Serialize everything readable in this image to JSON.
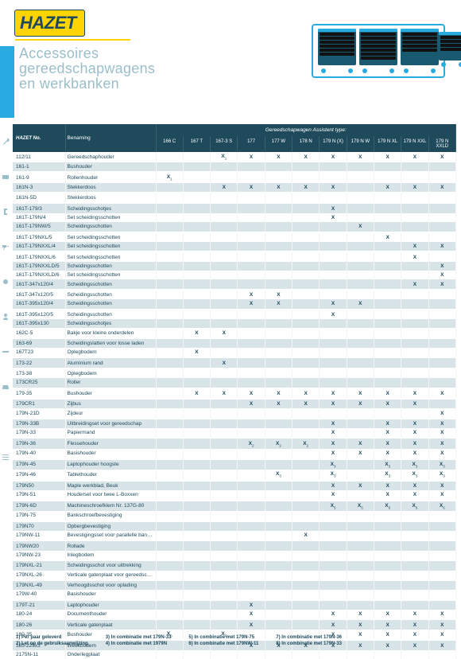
{
  "brand": "HAZET",
  "title_l1": "Accessoires",
  "title_l2": "gereedschapwagens",
  "title_l3": "en werkbanken",
  "header": {
    "group_label": "Gereedschapwagen Assistent type:",
    "code_label": "HAZET No.",
    "name_label": "Benaming",
    "cols": [
      "166 C",
      "167 T",
      "167-3 S",
      "177",
      "177 W",
      "178 N",
      "179 N (X)",
      "179 N W",
      "179 N XL",
      "179 N XXL",
      "179 N XXLD"
    ]
  },
  "rows": [
    {
      "code": "112/11",
      "name": "Gereedschaphouder",
      "v": [
        "",
        "",
        "X(1)",
        "X",
        "X",
        "X",
        "X",
        "X",
        "X",
        "X",
        "X"
      ]
    },
    {
      "code": "161-1",
      "name": "Bushouder",
      "v": [
        "",
        "",
        "",
        "",
        "",
        "",
        "",
        "",
        "",
        "",
        ""
      ]
    },
    {
      "code": "161-9",
      "name": "Rollenhouder",
      "v": [
        "X(1)",
        "",
        "",
        "",
        "",
        "",
        "",
        "",
        "",
        "",
        ""
      ]
    },
    {
      "code": "161N-3",
      "name": "Stekkerdoos",
      "v": [
        "",
        "",
        "X",
        "X",
        "X",
        "X",
        "X",
        "",
        "X",
        "X",
        "X"
      ]
    },
    {
      "code": "161N-5D",
      "name": "Stekkerdoos",
      "v": [
        "",
        "",
        "",
        "",
        "",
        "",
        "",
        "",
        "",
        "",
        ""
      ]
    },
    {
      "code": "161T-179/3",
      "name": "Scheidingsschotjes",
      "v": [
        "",
        "",
        "",
        "",
        "",
        "",
        "X",
        "",
        "",
        "",
        ""
      ]
    },
    {
      "code": "161T-179N/4",
      "name": "Set scheidingsschotten",
      "v": [
        "",
        "",
        "",
        "",
        "",
        "",
        "X",
        "",
        "",
        "",
        ""
      ]
    },
    {
      "code": "161T-179NW/5",
      "name": "Scheidingsschotten",
      "v": [
        "",
        "",
        "",
        "",
        "",
        "",
        "",
        "X",
        "",
        "",
        ""
      ]
    },
    {
      "code": "161T-179NXL/5",
      "name": "Set scheidingsschotten",
      "v": [
        "",
        "",
        "",
        "",
        "",
        "",
        "",
        "",
        "X",
        "",
        ""
      ]
    },
    {
      "code": "161T-179NXXL/4",
      "name": "Set scheidingsschotten",
      "v": [
        "",
        "",
        "",
        "",
        "",
        "",
        "",
        "",
        "",
        "X",
        "X"
      ]
    },
    {
      "code": "161T-179NXXL/6",
      "name": "Set scheidingsschotten",
      "v": [
        "",
        "",
        "",
        "",
        "",
        "",
        "",
        "",
        "",
        "X",
        ""
      ]
    },
    {
      "code": "161T-179NXXLD/5",
      "name": "Scheidingsschotten",
      "v": [
        "",
        "",
        "",
        "",
        "",
        "",
        "",
        "",
        "",
        "",
        "X"
      ]
    },
    {
      "code": "161T-179NXXLD/6",
      "name": "Set scheidingsschotten",
      "v": [
        "",
        "",
        "",
        "",
        "",
        "",
        "",
        "",
        "",
        "",
        "X"
      ]
    },
    {
      "code": "161T-347x120/4",
      "name": "Scheidingsschotten",
      "v": [
        "",
        "",
        "",
        "",
        "",
        "",
        "",
        "",
        "",
        "X",
        "X"
      ]
    },
    {
      "code": "161T-347x120/5",
      "name": "Scheidingsschotten",
      "v": [
        "",
        "",
        "",
        "X",
        "X",
        "",
        "",
        "",
        "",
        "",
        ""
      ]
    },
    {
      "code": "161T-395x120/4",
      "name": "Scheidingsschotten",
      "v": [
        "",
        "",
        "",
        "X",
        "X",
        "",
        "X",
        "X",
        "",
        "",
        ""
      ]
    },
    {
      "code": "161T-395x120/5",
      "name": "Scheidingsschotten",
      "v": [
        "",
        "",
        "",
        "",
        "",
        "",
        "X",
        "",
        "",
        "",
        ""
      ]
    },
    {
      "code": "161T-395x130",
      "name": "Scheidingsschotjes",
      "v": [
        "",
        "",
        "",
        "",
        "",
        "",
        "",
        "",
        "",
        "",
        ""
      ]
    },
    {
      "code": "162C-5",
      "name": "Bakje voor kleine onderdelen",
      "v": [
        "",
        "X",
        "X",
        "",
        "",
        "",
        "",
        "",
        "",
        "",
        ""
      ]
    },
    {
      "code": "163-69",
      "name": "Scheidingslatten voor losse laden",
      "v": [
        "",
        "",
        "",
        "",
        "",
        "",
        "",
        "",
        "",
        "",
        ""
      ]
    },
    {
      "code": "167T23",
      "name": "Oplegbodem",
      "v": [
        "",
        "X",
        "",
        "",
        "",
        "",
        "",
        "",
        "",
        "",
        ""
      ]
    },
    {
      "code": "173-22",
      "name": "Aluminium rand",
      "v": [
        "",
        "",
        "X",
        "",
        "",
        "",
        "",
        "",
        "",
        "",
        ""
      ]
    },
    {
      "code": "173-38",
      "name": "Oplegbodem",
      "v": [
        "",
        "",
        "",
        "",
        "",
        "",
        "",
        "",
        "",
        "",
        ""
      ]
    },
    {
      "code": "173CR25",
      "name": "Roller",
      "v": [
        "",
        "",
        "",
        "",
        "",
        "",
        "",
        "",
        "",
        "",
        ""
      ]
    },
    {
      "code": "179-35",
      "name": "Bushouder",
      "v": [
        "",
        "X",
        "X",
        "X",
        "X",
        "X",
        "X",
        "X",
        "X",
        "X",
        "X"
      ]
    },
    {
      "code": "179CR1",
      "name": "Zijbus",
      "v": [
        "",
        "",
        "",
        "X",
        "X",
        "X",
        "X",
        "X",
        "X",
        "X",
        ""
      ]
    },
    {
      "code": "179N-21D",
      "name": "Zijdeur",
      "v": [
        "",
        "",
        "",
        "",
        "",
        "",
        "",
        "",
        "",
        "",
        "X"
      ]
    },
    {
      "code": "179N-33B",
      "name": "Uitbreidingset voor gereedschap",
      "v": [
        "",
        "",
        "",
        "",
        "",
        "",
        "X",
        "",
        "X",
        "X",
        "X"
      ]
    },
    {
      "code": "179N-33",
      "name": "Papiermand",
      "v": [
        "",
        "",
        "",
        "",
        "",
        "",
        "X",
        "",
        "X",
        "X",
        "X"
      ]
    },
    {
      "code": "179N-36",
      "name": "Flessehouder",
      "v": [
        "",
        "",
        "",
        "X(2)",
        "X(2)",
        "X(2)",
        "X",
        "X",
        "X",
        "X",
        "X"
      ]
    },
    {
      "code": "179N-40",
      "name": "Basishouder",
      "v": [
        "",
        "",
        "",
        "",
        "",
        "",
        "X",
        "X",
        "X",
        "X",
        "X"
      ]
    },
    {
      "code": "179N-45",
      "name": "Laptophouder hoogste",
      "v": [
        "",
        "",
        "",
        "",
        "",
        "",
        "X(3)",
        "",
        "X(3)",
        "X(3)",
        "X(3)"
      ]
    },
    {
      "code": "179N-46",
      "name": "Tablethouder",
      "v": [
        "",
        "",
        "",
        "",
        "X(3)",
        "",
        "X(3)",
        "",
        "X(3)",
        "X(3)",
        "X(3)"
      ]
    },
    {
      "code": "179N50",
      "name": "Maple werkblad, Beuk",
      "v": [
        "",
        "",
        "",
        "",
        "",
        "",
        "X",
        "X",
        "X",
        "X",
        "X"
      ]
    },
    {
      "code": "179N-51",
      "name": "Houderset voor twee L-Boxxen",
      "v": [
        "",
        "",
        "",
        "",
        "",
        "",
        "X",
        "",
        "X",
        "X",
        "X"
      ]
    },
    {
      "code": "179N-6D",
      "name": "Machineschroefklem Nr. 137G-80",
      "v": [
        "",
        "",
        "",
        "",
        "",
        "",
        "X(5)",
        "X(5)",
        "X(6)",
        "X(6)",
        "X(6)"
      ]
    },
    {
      "code": "179N-75",
      "name": "Bankschroefbevestiging",
      "v": [
        "",
        "",
        "",
        "",
        "",
        "",
        "",
        "",
        "",
        "",
        ""
      ]
    },
    {
      "code": "179N70",
      "name": "Opbergbevestiging",
      "v": [
        "",
        "",
        "",
        "",
        "",
        "",
        "",
        "",
        "",
        "",
        ""
      ]
    },
    {
      "code": "179NW-11",
      "name": "Bevestigingsset voor parallelle bankschroef",
      "v": [
        "",
        "",
        "",
        "",
        "",
        "X",
        "",
        "",
        "",
        "",
        ""
      ]
    },
    {
      "code": "179NW20",
      "name": "Rollade",
      "v": [
        "",
        "",
        "",
        "",
        "",
        "",
        "",
        "",
        "",
        "",
        ""
      ]
    },
    {
      "code": "179NW-23",
      "name": "Inlegbodem",
      "v": [
        "",
        "",
        "",
        "",
        "",
        "",
        "",
        "",
        "",
        "",
        ""
      ]
    },
    {
      "code": "179NXL-21",
      "name": "Scheidingsschot voor uittrekking",
      "v": [
        "",
        "",
        "",
        "",
        "",
        "",
        "",
        "",
        "",
        "",
        ""
      ]
    },
    {
      "code": "179NXL-26",
      "name": "Verticale gatenplaat voor gereedschap",
      "v": [
        "",
        "",
        "",
        "",
        "",
        "",
        "",
        "",
        "",
        "",
        ""
      ]
    },
    {
      "code": "179NXL-49",
      "name": "Verhoogdsschot voor oplading",
      "v": [
        "",
        "",
        "",
        "",
        "",
        "",
        "",
        "",
        "",
        "",
        ""
      ]
    },
    {
      "code": "179W-40",
      "name": "Basishouder",
      "v": [
        "",
        "",
        "",
        "",
        "",
        "",
        "",
        "",
        "",
        "",
        ""
      ]
    },
    {
      "code": "179T-21",
      "name": "Laptophouder",
      "v": [
        "",
        "",
        "",
        "X",
        "",
        "",
        "",
        "",
        "",
        "",
        ""
      ]
    },
    {
      "code": "180-24",
      "name": "Documenthouder",
      "v": [
        "",
        "",
        "",
        "X",
        "",
        "",
        "X",
        "X",
        "X",
        "X",
        "X"
      ]
    },
    {
      "code": "180-26",
      "name": "Verticale gatenplaat",
      "v": [
        "",
        "",
        "",
        "X",
        "",
        "",
        "X",
        "X",
        "X",
        "X",
        "X"
      ]
    },
    {
      "code": "180-35",
      "name": "Bushouder",
      "v": [
        "X(5)",
        "",
        "X(6)",
        "",
        "",
        "",
        "X",
        "X",
        "X",
        "X",
        "X"
      ]
    },
    {
      "code": "185-225x3",
      "name": "Weekbodem",
      "v": [
        "",
        "",
        "",
        "X",
        "X",
        "X",
        "X",
        "X",
        "X",
        "X",
        "X"
      ]
    },
    {
      "code": "2175N-11",
      "name": "Onderlegplaat",
      "v": [
        "",
        "",
        "",
        "",
        "",
        "",
        "",
        "",
        "",
        "",
        ""
      ]
    }
  ],
  "footnotes": [
    [
      "1) Per paar geleverd",
      "2) Let op de gebruiksaanwijzing"
    ],
    [
      "3) In combinatie met 179N-33",
      "4) In combinatie met 1979N"
    ],
    [
      "5) In combinatie met 179N-75",
      "6) In combinatie met 179NW-11"
    ],
    [
      "7) In combinatie met 179N-36",
      "8) In combinatie met 179N-33"
    ]
  ],
  "colors": {
    "primary": "#1e4a5c",
    "accent": "#29abe2",
    "yellow": "#ffd400",
    "alt_row": "#d9e4e8",
    "muted": "#9bbecb"
  }
}
